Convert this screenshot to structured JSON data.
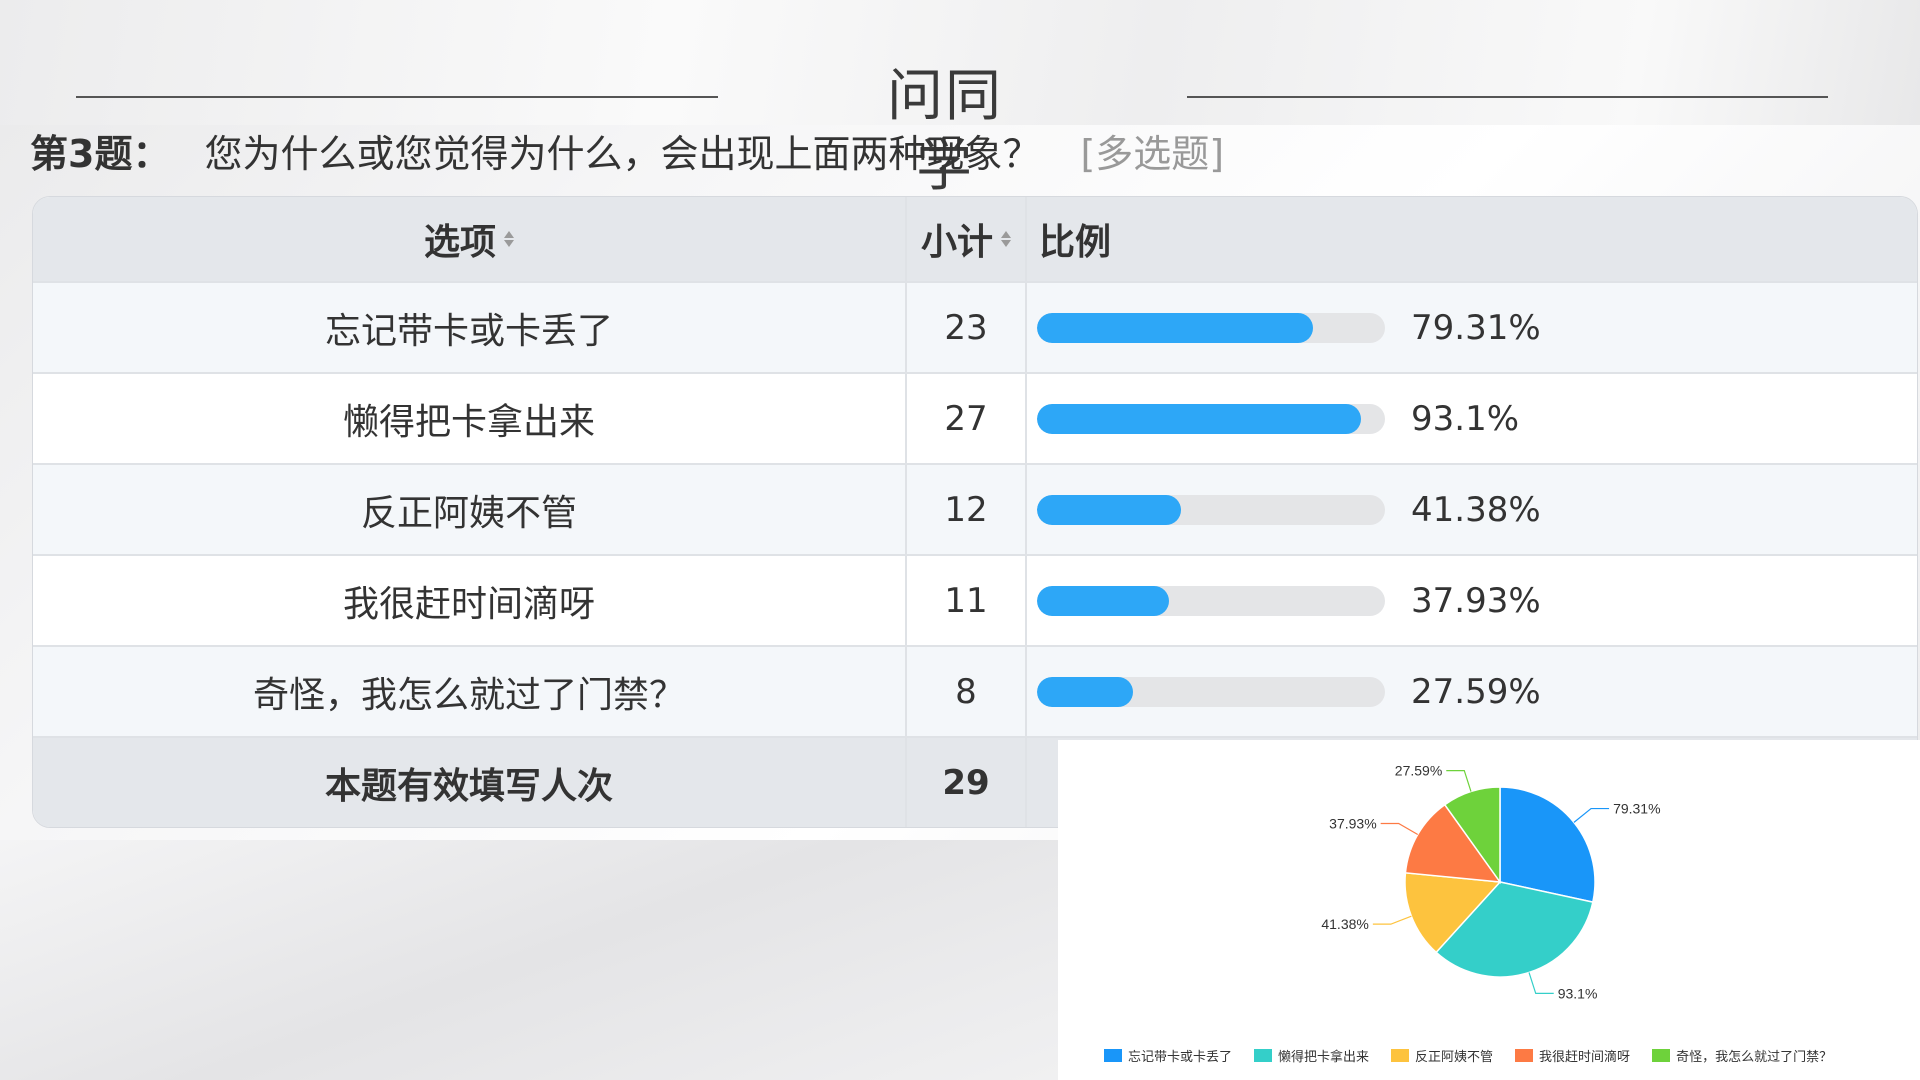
{
  "slide": {
    "title": "问同学"
  },
  "question": {
    "number": "第3题：",
    "text": "您为什么或您觉得为什么，会出现上面两种现象？",
    "tag": "[多选题]"
  },
  "table": {
    "headers": {
      "option": "选项",
      "count": "小计",
      "ratio": "比例"
    },
    "rows": [
      {
        "option": "忘记带卡或卡丢了",
        "count": "23",
        "percent_label": "79.31%",
        "percent": 79.31
      },
      {
        "option": "懒得把卡拿出来",
        "count": "27",
        "percent_label": "93.1%",
        "percent": 93.1
      },
      {
        "option": "反正阿姨不管",
        "count": "12",
        "percent_label": "41.38%",
        "percent": 41.38
      },
      {
        "option": "我很赶时间滴呀",
        "count": "11",
        "percent_label": "37.93%",
        "percent": 37.93
      },
      {
        "option": "奇怪，我怎么就过了门禁？",
        "count": "8",
        "percent_label": "27.59%",
        "percent": 27.59
      }
    ],
    "footer": {
      "label": "本题有效填写人次",
      "count": "29"
    }
  },
  "chart_data": {
    "type": "pie",
    "slices": [
      {
        "name": "忘记带卡或卡丢了",
        "label": "79.31%",
        "value": 79.31,
        "color": "#1996f9"
      },
      {
        "name": "懒得把卡拿出来",
        "label": "93.1%",
        "value": 93.1,
        "color": "#34cfc9"
      },
      {
        "name": "反正阿姨不管",
        "label": "41.38%",
        "value": 41.38,
        "color": "#fdc33e"
      },
      {
        "name": "我很赶时间滴呀",
        "label": "37.93%",
        "value": 37.93,
        "color": "#fd7a44"
      },
      {
        "name": "奇怪，我怎么就过了门禁？",
        "label": "27.59%",
        "value": 27.59,
        "color": "#6ed23b"
      }
    ],
    "legend_position": "bottom"
  }
}
